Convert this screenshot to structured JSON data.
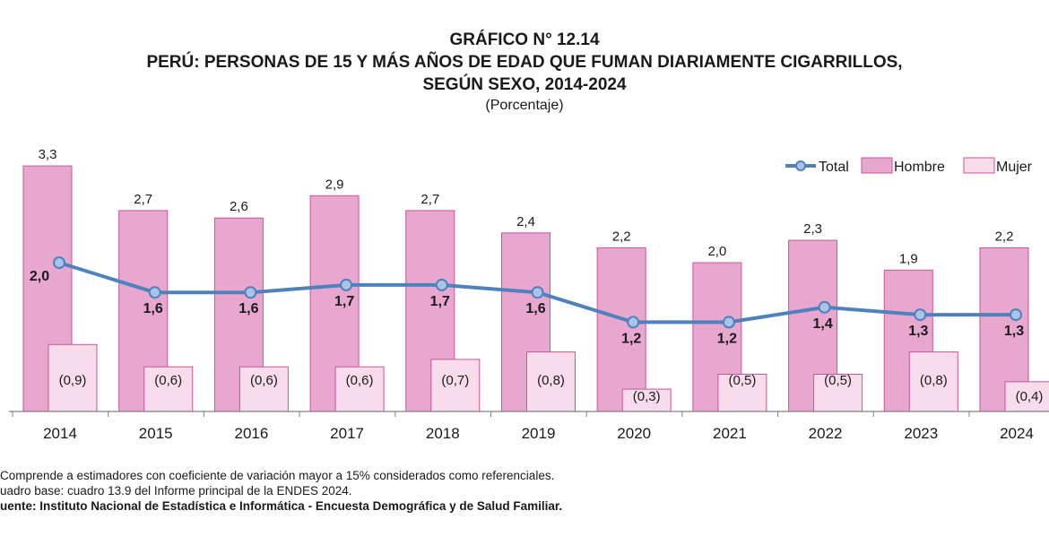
{
  "chart_data": {
    "type": "bar",
    "title_lines": [
      "GRÁFICO N° 12.14",
      "PERÚ: PERSONAS DE 15 Y MÁS AÑOS DE EDAD QUE FUMAN DIARIAMENTE CIGARRILLOS,",
      "SEGÚN SEXO, 2014-2024"
    ],
    "subtitle": "(Porcentaje)",
    "categories": [
      "2014",
      "2015",
      "2016",
      "2017",
      "2018",
      "2019",
      "2020",
      "2021",
      "2022",
      "2023",
      "2024"
    ],
    "series": [
      {
        "name": "Total",
        "kind": "line",
        "color": "#4f81bd",
        "values": [
          2.0,
          1.6,
          1.6,
          1.7,
          1.7,
          1.6,
          1.2,
          1.2,
          1.4,
          1.3,
          1.3
        ],
        "labels": [
          "2,0",
          "1,6",
          "1,6",
          "1,7",
          "1,7",
          "1,6",
          "1,2",
          "1,2",
          "1,4",
          "1,3",
          "1,3"
        ]
      },
      {
        "name": "Hombre",
        "kind": "bar",
        "color": "#e8a7cf",
        "values": [
          3.3,
          2.7,
          2.6,
          2.9,
          2.7,
          2.4,
          2.2,
          2.0,
          2.3,
          1.9,
          2.2
        ],
        "labels": [
          "3,3",
          "2,7",
          "2,6",
          "2,9",
          "2,7",
          "2,4",
          "2,2",
          "2,0",
          "2,3",
          "1,9",
          "2,2"
        ]
      },
      {
        "name": "Mujer",
        "kind": "bar",
        "color": "#f8dcec",
        "values": [
          0.9,
          0.6,
          0.6,
          0.6,
          0.7,
          0.8,
          0.3,
          0.5,
          0.5,
          0.8,
          0.4
        ],
        "labels": [
          "(0,9)",
          "(0,6)",
          "(0,6)",
          "(0,6)",
          "(0,7)",
          "(0,8)",
          "(0,3)",
          "(0,5)",
          "(0,5)",
          "(0,8)",
          "(0,4)"
        ]
      }
    ],
    "ylim": [
      0,
      3.5
    ],
    "grid": false,
    "legend_position": "top-right"
  },
  "notes": {
    "note1": "Comprende a estimadores con coeficiente de variación mayor a 15% considerados como referenciales.",
    "note2": "uadro base: cuadro 13.9 del Informe principal de la ENDES 2024.",
    "source": "uente: Instituto Nacional de Estadística e Informática - Encuesta Demográfica y de Salud Familiar."
  }
}
